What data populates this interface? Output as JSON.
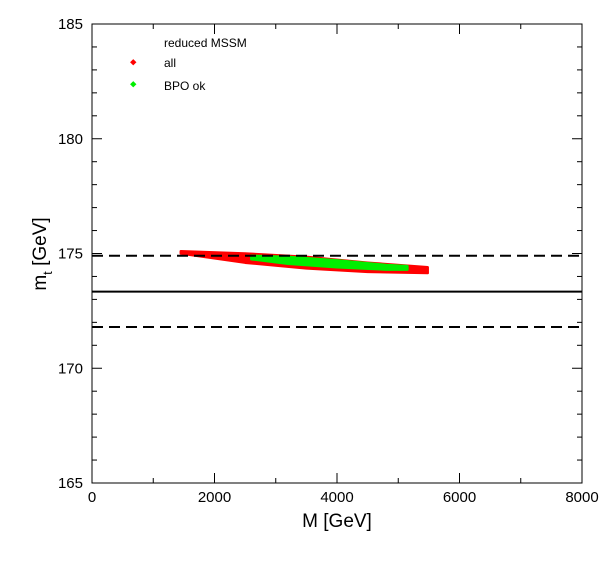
{
  "chart_data": {
    "type": "scatter",
    "title": "",
    "xlabel": "M [GeV]",
    "ylabel_main": "m",
    "ylabel_sub": "t",
    "ylabel_unit": "[GeV]",
    "xlim": [
      0,
      8000
    ],
    "ylim": [
      165,
      185
    ],
    "xticks": [
      0,
      2000,
      4000,
      6000,
      8000
    ],
    "yticks": [
      165,
      170,
      175,
      180,
      185
    ],
    "grid": false,
    "legend": {
      "position": "top-left",
      "title": "reduced MSSM",
      "entries": [
        {
          "label": "all",
          "color": "#ff0000"
        },
        {
          "label": "BPO ok",
          "color": "#00ee00"
        }
      ]
    },
    "reference_lines": [
      {
        "name": "central",
        "y": 173.34,
        "style": "solid"
      },
      {
        "name": "upper",
        "y": 174.9,
        "style": "dashed"
      },
      {
        "name": "lower",
        "y": 171.8,
        "style": "dashed"
      }
    ],
    "series": [
      {
        "name": "all",
        "color": "#ff0000",
        "band_upper": [
          [
            1450,
            175.1
          ],
          [
            2500,
            175.0
          ],
          [
            3500,
            174.85
          ],
          [
            4500,
            174.6
          ],
          [
            5480,
            174.4
          ]
        ],
        "band_lower": [
          [
            1450,
            175.0
          ],
          [
            2500,
            174.6
          ],
          [
            3500,
            174.35
          ],
          [
            4500,
            174.2
          ],
          [
            5480,
            174.15
          ]
        ]
      },
      {
        "name": "BPO ok",
        "color": "#00ee00",
        "band_upper": [
          [
            2600,
            174.9
          ],
          [
            3200,
            174.85
          ],
          [
            4000,
            174.7
          ],
          [
            4800,
            174.5
          ],
          [
            5150,
            174.45
          ]
        ],
        "band_lower": [
          [
            2600,
            174.75
          ],
          [
            3200,
            174.55
          ],
          [
            4000,
            174.4
          ],
          [
            4800,
            174.3
          ],
          [
            5150,
            174.3
          ]
        ]
      }
    ]
  }
}
